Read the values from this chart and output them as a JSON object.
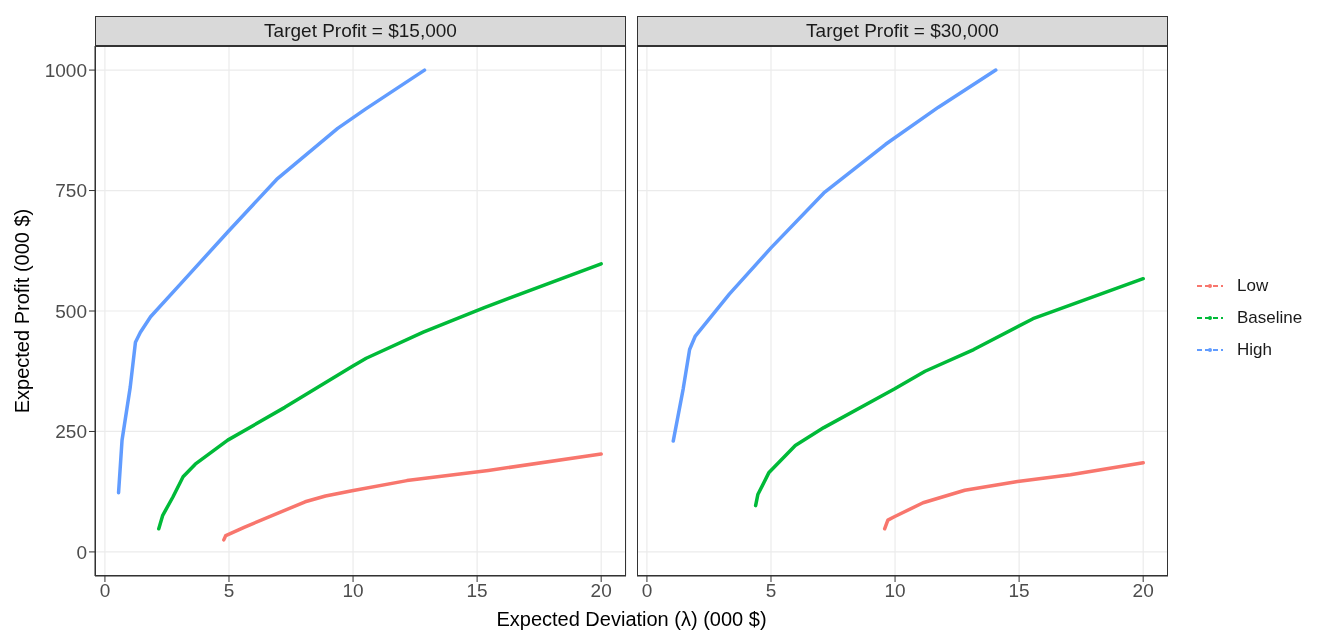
{
  "chart_data": [
    {
      "type": "line",
      "title": "Target Profit = $15,000",
      "xlabel": "Expected Deviation (λ) (000 $)",
      "ylabel": "Expected Profit (000 $)",
      "legend": "right",
      "xlim": [
        -0.4,
        21
      ],
      "xticks": [
        0,
        5,
        10,
        15,
        20
      ],
      "ylim": [
        -50,
        1050
      ],
      "yticks": [
        0,
        250,
        500,
        750,
        1000
      ],
      "grid": true,
      "marker": "none",
      "line_style": "solid",
      "series": [
        {
          "name": "Low",
          "color": "#f8766d",
          "x": [
            4.79,
            4.87,
            5.61,
            8.07,
            8.89,
            9.96,
            12.17,
            15.45,
            20
          ],
          "values": [
            25,
            34,
            51,
            104,
            116,
            127,
            148,
            169,
            203
          ]
        },
        {
          "name": "Baseline",
          "color": "#00ba38",
          "x": [
            2.17,
            2.33,
            2.74,
            3.15,
            3.64,
            4.95,
            7.25,
            9.96,
            10.53,
            12.83,
            15.29,
            20
          ],
          "values": [
            48,
            76,
            114,
            156,
            182,
            232,
            300,
            385,
            402,
            456,
            507,
            598
          ]
        },
        {
          "name": "High",
          "color": "#619cff",
          "x": [
            0.55,
            0.69,
            1.02,
            1.23,
            1.43,
            1.84,
            3.15,
            4.95,
            6.92,
            9.38,
            10.5,
            12.88
          ],
          "values": [
            123,
            232,
            342,
            435,
            456,
            488,
            562,
            664,
            773,
            879,
            919,
            1000
          ]
        }
      ]
    },
    {
      "type": "line",
      "title": "Target Profit = $30,000",
      "xlim": [
        -0.4,
        21
      ],
      "xticks": [
        0,
        5,
        10,
        15,
        20
      ],
      "ylim": [
        -50,
        1050
      ],
      "yticks": [
        0,
        250,
        500,
        750,
        1000
      ],
      "tick_labels": "x",
      "grid": true,
      "marker": "none",
      "line_style": "solid",
      "series": [
        {
          "color": "#f8766d",
          "x": [
            9.58,
            9.71,
            9.97,
            11.13,
            12.81,
            14.94,
            17.07,
            20
          ],
          "values": [
            48,
            66,
            73,
            102,
            128,
            146,
            160,
            185
          ]
        },
        {
          "color": "#00ba38",
          "x": [
            4.38,
            4.47,
            4.92,
            5.98,
            7.13,
            9.97,
            11.21,
            13.17,
            15.56,
            20
          ],
          "values": [
            96,
            119,
            165,
            221,
            258,
            338,
            375,
            420,
            484,
            567
          ]
        },
        {
          "color": "#619cff",
          "x": [
            1.06,
            1.46,
            1.72,
            1.95,
            3.32,
            5.0,
            7.13,
            9.62,
            11.75,
            14.06
          ],
          "values": [
            230,
            338,
            420,
            448,
            535,
            631,
            745,
            846,
            923,
            1000
          ]
        }
      ]
    }
  ]
}
